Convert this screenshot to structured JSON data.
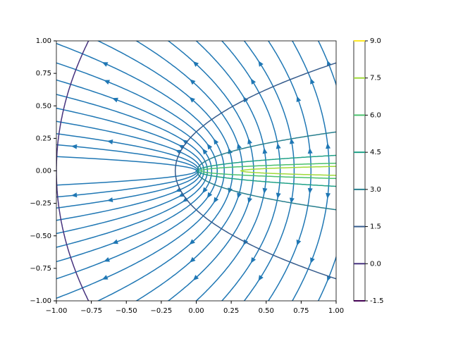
{
  "chart_data": {
    "type": "streamplot",
    "xlim": [
      -1,
      1
    ],
    "ylim": [
      -1,
      1
    ],
    "xticks": [
      {
        "value": -1,
        "label": "−1.00"
      },
      {
        "value": -0.75,
        "label": "−0.75"
      },
      {
        "value": -0.5,
        "label": "−0.50"
      },
      {
        "value": -0.25,
        "label": "−0.25"
      },
      {
        "value": 0,
        "label": "0.00"
      },
      {
        "value": 0.25,
        "label": "0.25"
      },
      {
        "value": 0.5,
        "label": "0.50"
      },
      {
        "value": 0.75,
        "label": "0.75"
      },
      {
        "value": 1,
        "label": "1.00"
      }
    ],
    "yticks": [
      {
        "value": -1,
        "label": "−1.00"
      },
      {
        "value": -0.75,
        "label": "−0.75"
      },
      {
        "value": -0.5,
        "label": "−0.50"
      },
      {
        "value": -0.25,
        "label": "−0.25"
      },
      {
        "value": 0,
        "label": "0.00"
      },
      {
        "value": 0.25,
        "label": "0.25"
      },
      {
        "value": 0.5,
        "label": "0.50"
      },
      {
        "value": 0.75,
        "label": "0.75"
      },
      {
        "value": 1,
        "label": "1.00"
      }
    ],
    "stream_color": "#1f77b4",
    "colorbar": {
      "lim": [
        -1.5,
        9
      ],
      "ticks": [
        -1.5,
        {
          "value": 0,
          "label": "0.0"
        },
        1.5,
        {
          "value": 3,
          "label": "3.0"
        },
        4.5,
        {
          "value": 6,
          "label": "6.0"
        },
        7.5,
        {
          "value": 9,
          "label": "9.0"
        }
      ],
      "colors": [
        "#440154",
        "#46327e",
        "#365c8d",
        "#277f8e",
        "#1fa187",
        "#4ac16d",
        "#a0da39",
        "#fde725"
      ]
    }
  }
}
